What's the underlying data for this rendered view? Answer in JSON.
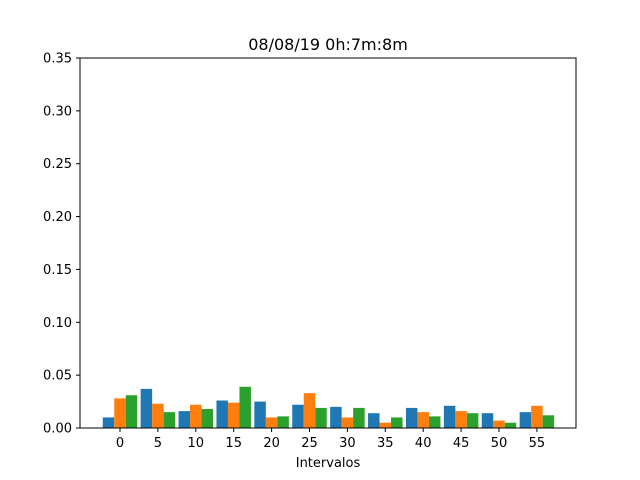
{
  "chart_data": {
    "type": "bar",
    "title": "08/08/19 0h:7m:8m",
    "xlabel": "Intervalos",
    "ylabel": "",
    "ylim": [
      0,
      0.35
    ],
    "yticks": [
      "0.00",
      "0.05",
      "0.10",
      "0.15",
      "0.20",
      "0.25",
      "0.30",
      "0.35"
    ],
    "categories": [
      "0",
      "5",
      "10",
      "15",
      "20",
      "25",
      "30",
      "35",
      "40",
      "45",
      "50",
      "55"
    ],
    "grid": false,
    "series": [
      {
        "color": "#1f77b4",
        "values": [
          0.01,
          0.037,
          0.016,
          0.026,
          0.025,
          0.022,
          0.02,
          0.014,
          0.019,
          0.021,
          0.014,
          0.015
        ]
      },
      {
        "color": "#ff7f0e",
        "values": [
          0.028,
          0.023,
          0.022,
          0.024,
          0.01,
          0.033,
          0.01,
          0.005,
          0.015,
          0.016,
          0.007,
          0.021
        ]
      },
      {
        "color": "#2ca02c",
        "values": [
          0.031,
          0.015,
          0.018,
          0.039,
          0.011,
          0.019,
          0.019,
          0.01,
          0.011,
          0.014,
          0.005,
          0.012
        ]
      }
    ]
  }
}
